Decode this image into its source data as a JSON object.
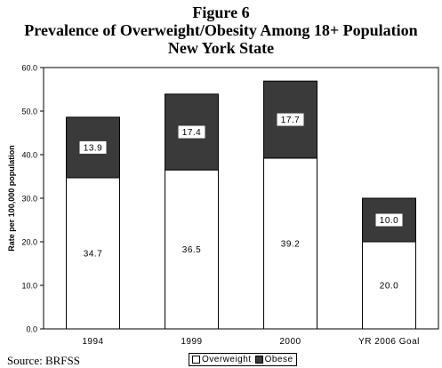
{
  "title_lines": [
    "Figure 6",
    "Prevalence of Overweight/Obesity Among 18+ Population",
    "New York State"
  ],
  "source": "Source:  BRFSS",
  "chart_data": {
    "type": "bar",
    "stacked": true,
    "categories": [
      "1994",
      "1999",
      "2000",
      "YR 2006 Goal"
    ],
    "series": [
      {
        "name": "Overweight",
        "color": "#ffffff",
        "values": [
          34.7,
          36.5,
          39.2,
          20.0
        ],
        "labels": [
          "34.7",
          "36.5",
          "39.2",
          "20.0"
        ]
      },
      {
        "name": "Obese",
        "color": "#3a3a3a",
        "values": [
          13.9,
          17.4,
          17.7,
          10.0
        ],
        "labels": [
          "13.9",
          "17.4",
          "17.7",
          "10.0"
        ]
      }
    ],
    "ylabel": "Rate per 100,000 population",
    "ylim": [
      0,
      60
    ],
    "yticks": [
      "0.0",
      "10.0",
      "20.0",
      "30.0",
      "40.0",
      "50.0",
      "60.0"
    ],
    "grid": false,
    "legend_position": "bottom"
  }
}
